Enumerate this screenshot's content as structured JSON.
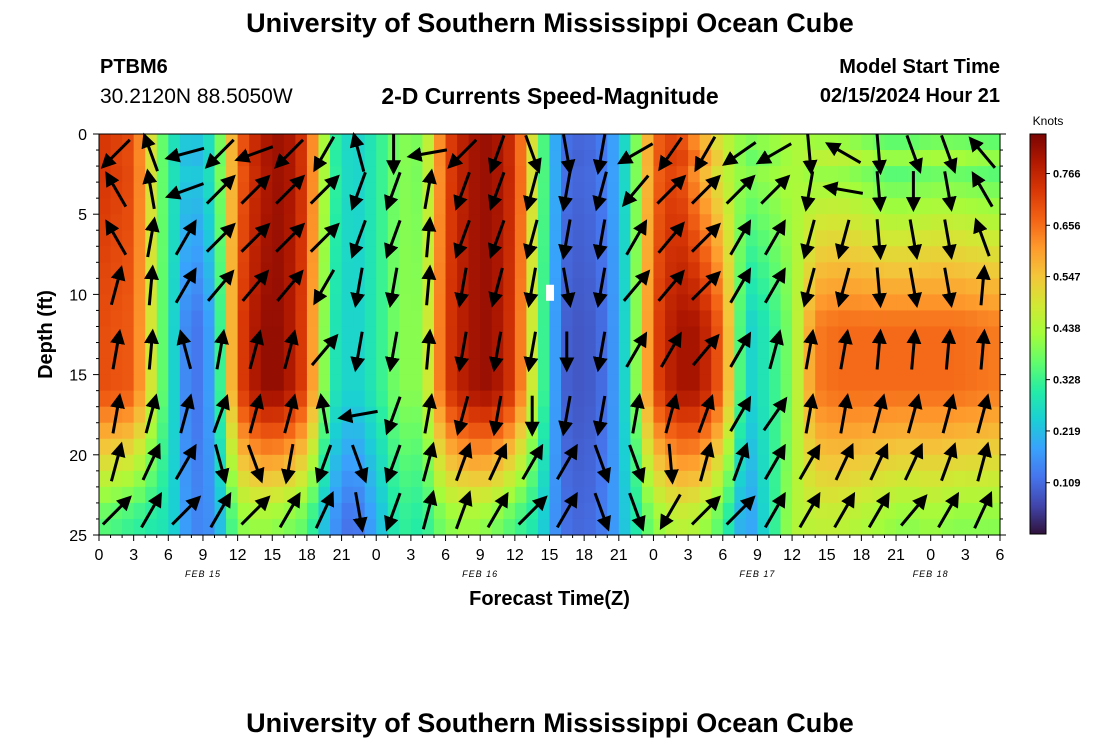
{
  "page": {
    "title_top": "University of Southern Mississippi Ocean Cube",
    "title_bottom": "University of Southern Mississippi Ocean Cube",
    "station_id": "PTBM6",
    "station_coords": "30.2120N  88.5050W",
    "chart_title": "2-D Currents Speed-Magnitude",
    "model_start_label": "Model Start Time",
    "model_start_value": "02/15/2024 Hour 21"
  },
  "colors": {
    "background": "#ffffff",
    "axis": "#000000",
    "arrow": "#000000",
    "colormap": [
      "#30123b",
      "#4145ab",
      "#4675ed",
      "#39a2fc",
      "#1bcfd4",
      "#24eca6",
      "#61fc6c",
      "#a4fc3b",
      "#d1e834",
      "#f3c63a",
      "#fe9b2d",
      "#f36315",
      "#d93806",
      "#b11901",
      "#7a0403"
    ]
  },
  "chart_data": {
    "type": "heatmap",
    "title": "2-D Currents Speed-Magnitude",
    "xlabel": "Forecast Time(Z)",
    "ylabel": "Depth (ft)",
    "ylim": [
      0,
      25
    ],
    "y_ticks": [
      "0",
      "5",
      "10",
      "15",
      "20",
      "25"
    ],
    "x_ticks": [
      "0",
      "3",
      "6",
      "9",
      "12",
      "15",
      "18",
      "21",
      "0",
      "3",
      "6",
      "9",
      "12",
      "15",
      "18",
      "21",
      "0",
      "3",
      "6",
      "9",
      "12",
      "15",
      "18",
      "21",
      "0",
      "3",
      "6"
    ],
    "date_labels": [
      {
        "label": "FEB 15",
        "hour": 9
      },
      {
        "label": "FEB 16",
        "hour": 33
      },
      {
        "label": "FEB 17",
        "hour": 57
      },
      {
        "label": "FEB 18",
        "hour": 72
      }
    ],
    "colorbar": {
      "title": "Knots",
      "ticks": [
        "0.109",
        "0.219",
        "0.328",
        "0.438",
        "0.547",
        "0.656",
        "0.766"
      ],
      "range": [
        0.0,
        0.85
      ]
    },
    "speed_profile": {
      "hours": [
        0,
        3,
        6,
        8,
        10,
        12,
        14,
        16,
        18,
        20,
        22,
        24,
        26,
        28,
        30,
        32,
        34,
        36,
        38,
        40,
        42,
        44,
        46,
        48,
        50,
        52,
        54,
        56,
        58,
        60,
        62,
        64,
        66,
        68,
        70,
        72,
        74,
        78
      ],
      "surface_knots": [
        0.74,
        0.7,
        0.3,
        0.22,
        0.3,
        0.66,
        0.78,
        0.82,
        0.72,
        0.34,
        0.24,
        0.3,
        0.4,
        0.38,
        0.7,
        0.8,
        0.82,
        0.74,
        0.42,
        0.12,
        0.1,
        0.14,
        0.3,
        0.66,
        0.72,
        0.58,
        0.46,
        0.4,
        0.42,
        0.44,
        0.4,
        0.4,
        0.38,
        0.34,
        0.34,
        0.36,
        0.36,
        0.34
      ],
      "mid_knots": [
        0.7,
        0.68,
        0.3,
        0.1,
        0.2,
        0.7,
        0.82,
        0.82,
        0.7,
        0.3,
        0.24,
        0.3,
        0.4,
        0.4,
        0.72,
        0.8,
        0.82,
        0.72,
        0.4,
        0.1,
        0.08,
        0.12,
        0.3,
        0.7,
        0.8,
        0.8,
        0.66,
        0.24,
        0.3,
        0.4,
        0.64,
        0.66,
        0.66,
        0.66,
        0.66,
        0.66,
        0.66,
        0.64
      ],
      "bottom_knots": [
        0.36,
        0.32,
        0.28,
        0.14,
        0.16,
        0.4,
        0.42,
        0.4,
        0.36,
        0.18,
        0.1,
        0.2,
        0.32,
        0.3,
        0.4,
        0.42,
        0.4,
        0.34,
        0.28,
        0.12,
        0.1,
        0.14,
        0.26,
        0.4,
        0.46,
        0.44,
        0.34,
        0.16,
        0.28,
        0.44,
        0.46,
        0.46,
        0.44,
        0.42,
        0.4,
        0.42,
        0.4,
        0.4
      ]
    },
    "vector_rows_depth_ft": [
      1.2,
      3.5,
      6.5,
      9.5,
      13.5,
      17.5,
      20.5,
      23.5
    ],
    "vector_columns_hours": [
      1.5,
      4.5,
      7.5,
      10.5,
      13.5,
      16.5,
      19.5,
      22.5,
      25.5,
      28.5,
      31.5,
      34.5,
      37.5,
      40.5,
      43.5,
      46.5,
      49.5,
      52.5,
      55.5,
      58.5,
      61.5,
      64.5,
      67.5,
      70.5,
      73.5,
      76.5
    ],
    "vector_directions_deg": [
      [
        225,
        340,
        255,
        225,
        250,
        225,
        210,
        345,
        180,
        260,
        225,
        200,
        160,
        170,
        190,
        240,
        215,
        210,
        235,
        240,
        175,
        300,
        175,
        160,
        160,
        320
      ],
      [
        330,
        350,
        250,
        45,
        45,
        45,
        45,
        200,
        200,
        10,
        200,
        200,
        195,
        190,
        195,
        220,
        45,
        45,
        45,
        45,
        190,
        280,
        175,
        180,
        170,
        330
      ],
      [
        330,
        10,
        30,
        45,
        45,
        45,
        45,
        200,
        200,
        5,
        200,
        200,
        195,
        190,
        190,
        30,
        40,
        45,
        30,
        30,
        195,
        195,
        175,
        170,
        170,
        340
      ],
      [
        15,
        5,
        30,
        40,
        40,
        40,
        210,
        190,
        190,
        5,
        190,
        195,
        190,
        170,
        190,
        40,
        40,
        45,
        30,
        30,
        195,
        195,
        175,
        170,
        170,
        5
      ],
      [
        10,
        5,
        345,
        10,
        15,
        15,
        40,
        190,
        190,
        5,
        190,
        190,
        190,
        180,
        190,
        30,
        30,
        40,
        30,
        15,
        10,
        10,
        5,
        5,
        5,
        5
      ],
      [
        10,
        15,
        15,
        20,
        15,
        15,
        350,
        260,
        200,
        10,
        195,
        190,
        180,
        190,
        190,
        10,
        15,
        20,
        30,
        35,
        10,
        10,
        15,
        15,
        15,
        15
      ],
      [
        15,
        25,
        30,
        165,
        160,
        190,
        200,
        160,
        200,
        15,
        20,
        25,
        30,
        30,
        160,
        160,
        175,
        15,
        20,
        30,
        30,
        25,
        25,
        25,
        20,
        15
      ],
      [
        45,
        30,
        45,
        30,
        45,
        30,
        25,
        170,
        200,
        15,
        20,
        30,
        45,
        30,
        160,
        160,
        210,
        45,
        45,
        30,
        30,
        30,
        30,
        40,
        30,
        25
      ]
    ],
    "annotation": "white marker near hour 39, depth 10 ft"
  }
}
